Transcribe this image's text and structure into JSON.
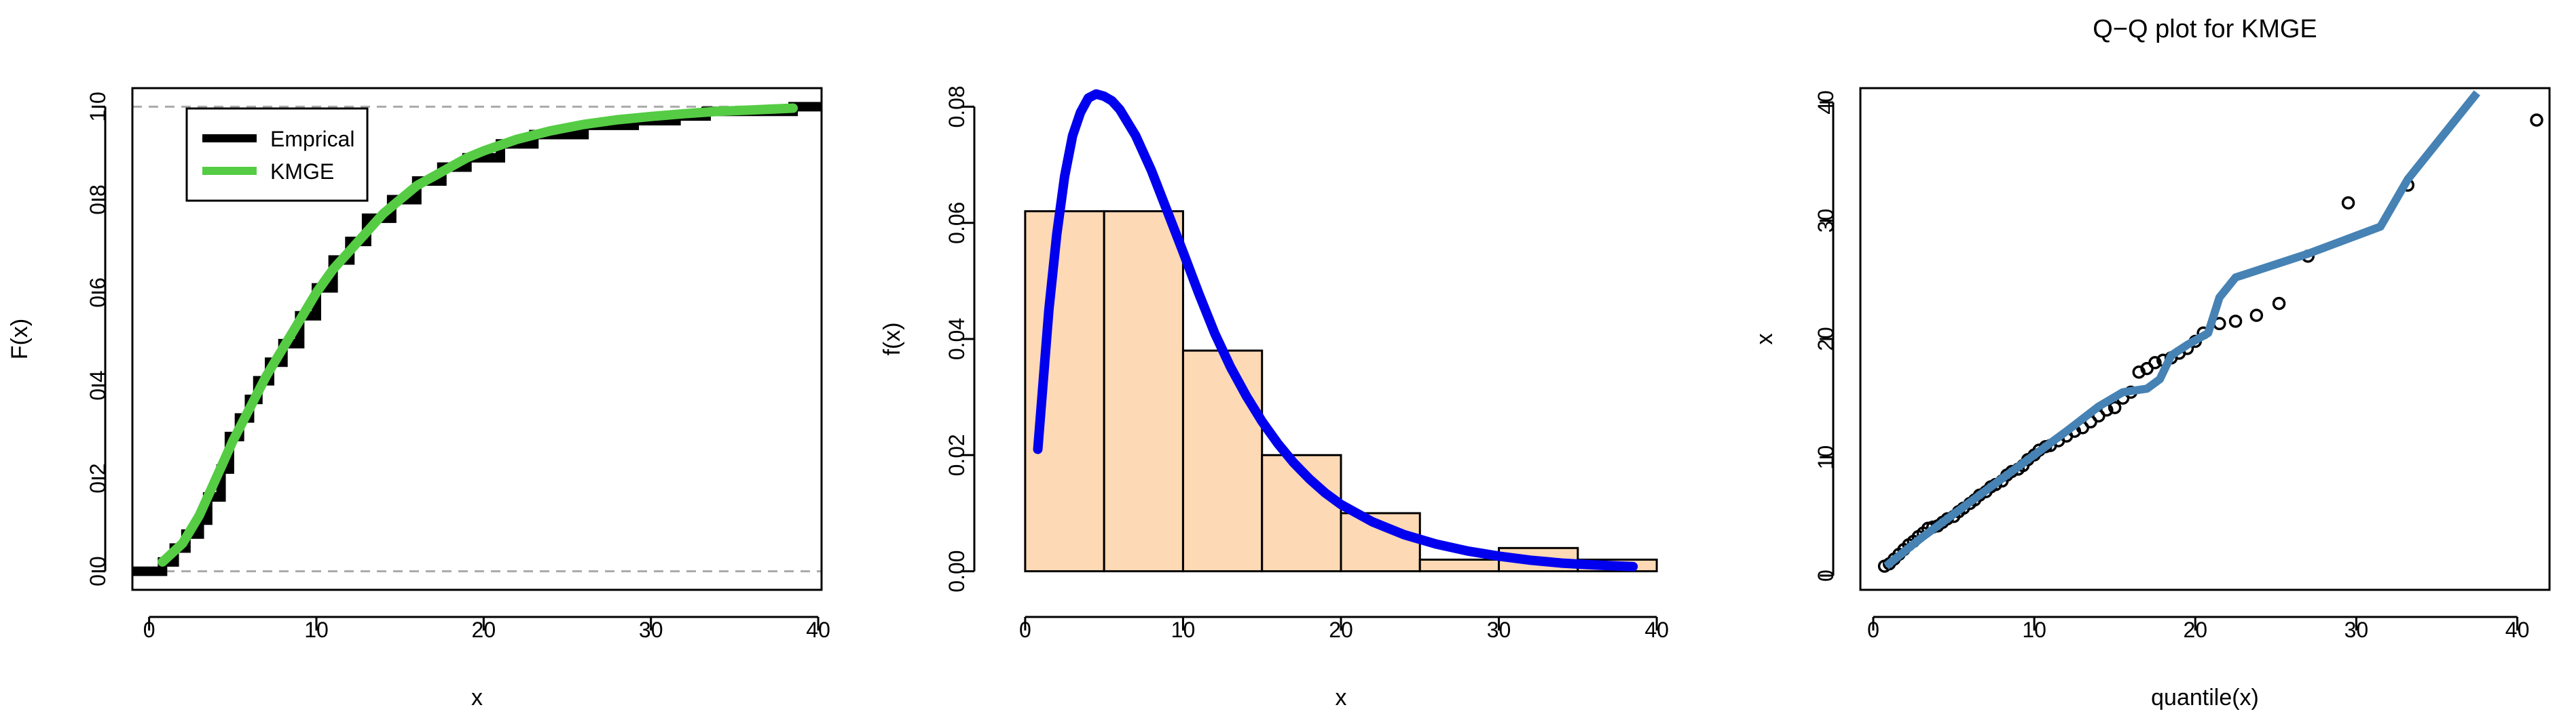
{
  "figure": {
    "background": "#ffffff"
  },
  "chart_data": [
    {
      "type": "line",
      "title": "",
      "xlabel": "x",
      "ylabel": "F(x)",
      "xlim": [
        -1,
        40.2
      ],
      "ylim": [
        -0.04,
        1.04
      ],
      "xticks": [
        0,
        10,
        20,
        30,
        40
      ],
      "yticks": [
        0.0,
        0.2,
        0.4,
        0.6,
        0.8,
        1.0
      ],
      "xtick_labels": [
        "0",
        "10",
        "20",
        "30",
        "40"
      ],
      "ytick_labels": [
        "0.0",
        "0.2",
        "0.4",
        "0.6",
        "0.8",
        "1.0"
      ],
      "reference_lines": [
        0,
        1
      ],
      "legend": {
        "position": "top-left",
        "entries": [
          "Emprical",
          "KMGE"
        ]
      },
      "series": [
        {
          "name": "Emprical",
          "kind": "step",
          "color": "#000000",
          "x": [
            0.8,
            1.5,
            2.2,
            3.0,
            3.5,
            4.3,
            4.8,
            5.4,
            6.0,
            6.5,
            7.2,
            8.0,
            9.0,
            10.0,
            11.0,
            12.0,
            13.0,
            14.5,
            16.0,
            17.5,
            19.0,
            21.0,
            23.0,
            26.0,
            29.0,
            31.5,
            33.3,
            38.5
          ],
          "y": [
            0.02,
            0.05,
            0.08,
            0.11,
            0.16,
            0.22,
            0.29,
            0.33,
            0.37,
            0.41,
            0.45,
            0.49,
            0.55,
            0.61,
            0.67,
            0.71,
            0.76,
            0.8,
            0.84,
            0.87,
            0.89,
            0.92,
            0.94,
            0.96,
            0.97,
            0.98,
            0.99,
            1.0
          ]
        },
        {
          "name": "KMGE",
          "kind": "line",
          "color": "#55cc44",
          "x": [
            0.8,
            2,
            3,
            4,
            5,
            6,
            7,
            8,
            9,
            10,
            11,
            12,
            13,
            14,
            15,
            16,
            17,
            18,
            19,
            20,
            22,
            24,
            26,
            28,
            30,
            32,
            34,
            36,
            38.5
          ],
          "y": [
            0.02,
            0.06,
            0.12,
            0.2,
            0.28,
            0.35,
            0.42,
            0.48,
            0.54,
            0.6,
            0.65,
            0.69,
            0.73,
            0.77,
            0.8,
            0.83,
            0.85,
            0.87,
            0.89,
            0.905,
            0.93,
            0.948,
            0.962,
            0.972,
            0.979,
            0.985,
            0.99,
            0.993,
            0.997
          ]
        }
      ]
    },
    {
      "type": "bar",
      "subtype": "histogram",
      "title": "",
      "xlabel": "x",
      "ylabel": "f(x)",
      "xlim": [
        -1.5,
        41.5
      ],
      "ylim": [
        -0.0032,
        0.0832
      ],
      "xticks": [
        0,
        10,
        20,
        30,
        40
      ],
      "yticks": [
        0.0,
        0.02,
        0.04,
        0.06,
        0.08
      ],
      "xtick_labels": [
        "0",
        "10",
        "20",
        "30",
        "40"
      ],
      "ytick_labels": [
        "0.00",
        "0.02",
        "0.04",
        "0.06",
        "0.08"
      ],
      "bin_edges": [
        0,
        5,
        10,
        15,
        20,
        25,
        30,
        35,
        40
      ],
      "values": [
        0.062,
        0.062,
        0.038,
        0.02,
        0.01,
        0.002,
        0.004,
        0.002
      ],
      "bar_color": "#fdd9b5",
      "density": {
        "name": "KMGE",
        "color": "#0000ee",
        "x": [
          0.8,
          1.5,
          2,
          2.5,
          3,
          3.5,
          4,
          4.5,
          5,
          5.5,
          6,
          7,
          8,
          9,
          10,
          11,
          12,
          13,
          14,
          15,
          16,
          17,
          18,
          19,
          20,
          22,
          24,
          26,
          28,
          30,
          32,
          34,
          36,
          38.5
        ],
        "y": [
          0.021,
          0.045,
          0.058,
          0.068,
          0.075,
          0.079,
          0.0815,
          0.0822,
          0.0818,
          0.081,
          0.0795,
          0.075,
          0.069,
          0.062,
          0.055,
          0.0478,
          0.041,
          0.0352,
          0.0302,
          0.0258,
          0.022,
          0.0187,
          0.0159,
          0.0135,
          0.0115,
          0.0085,
          0.0063,
          0.0047,
          0.0035,
          0.0026,
          0.0019,
          0.0014,
          0.0011,
          0.0008
        ]
      }
    },
    {
      "type": "scatter",
      "title": "Q−Q plot for  KMGE",
      "xlabel": "quantile(x)",
      "ylabel": "x",
      "xlim": [
        -0.8,
        42
      ],
      "ylim": [
        -1.2,
        41.2
      ],
      "xticks": [
        0,
        10,
        20,
        30,
        40
      ],
      "yticks": [
        0,
        10,
        20,
        30,
        40
      ],
      "xtick_labels": [
        "0",
        "10",
        "20",
        "30",
        "40"
      ],
      "ytick_labels": [
        "0",
        "10",
        "20",
        "30",
        "40"
      ],
      "points": {
        "x": [
          0.7,
          1.0,
          1.3,
          1.6,
          1.9,
          2.2,
          2.5,
          2.8,
          3.1,
          3.4,
          3.7,
          4.0,
          4.3,
          4.6,
          5.0,
          5.3,
          5.6,
          6.0,
          6.3,
          6.6,
          7.0,
          7.3,
          7.6,
          8.0,
          8.3,
          8.6,
          9.0,
          9.3,
          9.6,
          10.0,
          10.3,
          10.7,
          11.0,
          11.5,
          12.0,
          12.5,
          13.0,
          13.5,
          14.0,
          14.5,
          15.0,
          15.5,
          16.0,
          16.5,
          17.0,
          17.5,
          18.0,
          18.5,
          19.0,
          19.5,
          20.0,
          20.5,
          21.5,
          22.5,
          23.8,
          25.2,
          27.0,
          29.5,
          33.2,
          41.2
        ],
        "y": [
          0.8,
          1.0,
          1.4,
          1.8,
          2.2,
          2.6,
          2.9,
          3.3,
          3.6,
          4.0,
          4.1,
          4.2,
          4.5,
          4.8,
          5.0,
          5.4,
          5.7,
          6.1,
          6.4,
          6.8,
          7.1,
          7.5,
          7.7,
          8.0,
          8.5,
          8.8,
          9.0,
          9.3,
          9.8,
          10.2,
          10.6,
          10.9,
          11.0,
          11.4,
          11.8,
          12.2,
          12.5,
          13.0,
          13.5,
          14.0,
          14.2,
          15.0,
          15.5,
          17.2,
          17.5,
          18.0,
          18.2,
          18.4,
          18.8,
          19.2,
          19.8,
          20.5,
          21.3,
          21.5,
          22.0,
          23.0,
          27.0,
          31.5,
          33.0,
          38.5
        ]
      },
      "reference_line": {
        "name": "KMGE",
        "color": "#4682b4",
        "x": [
          0.8,
          3,
          6,
          9,
          12,
          14,
          15.5,
          17,
          17.8,
          18.5,
          19.5,
          20.8,
          21.5,
          22.5,
          27,
          31.5,
          33.2,
          37.5
        ],
        "y": [
          0.8,
          3.2,
          6.2,
          9.2,
          12.2,
          14.3,
          15.5,
          15.8,
          16.6,
          18.6,
          19.5,
          20.5,
          23.5,
          25.2,
          27.2,
          29.5,
          33.5,
          40.8
        ]
      }
    }
  ]
}
